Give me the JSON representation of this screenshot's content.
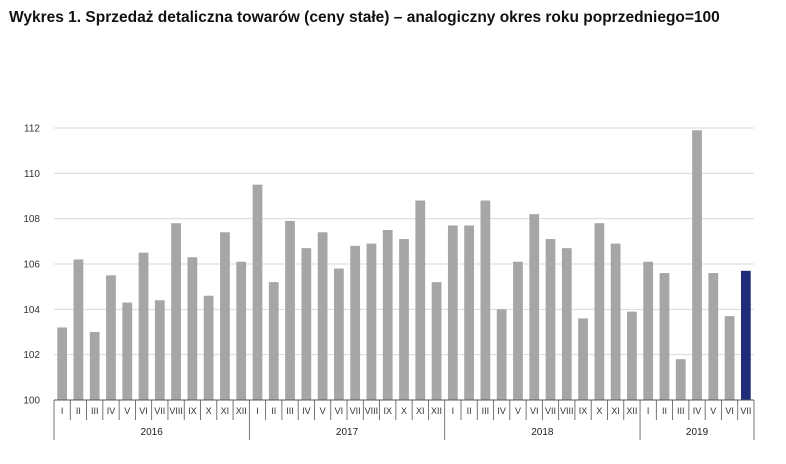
{
  "chart_data": {
    "type": "bar",
    "title": "Wykres 1. Sprzedaż detaliczna towarów (ceny stałe) – analogiczny okres roku poprzedniego=100",
    "xlabel": "",
    "ylabel": "",
    "ylim": [
      100,
      112
    ],
    "yticks": [
      "100",
      "102",
      "104",
      "106",
      "108",
      "110",
      "112"
    ],
    "grid": true,
    "categories": [
      "I",
      "II",
      "III",
      "IV",
      "V",
      "VI",
      "VII",
      "VIII",
      "IX",
      "X",
      "XI",
      "XII",
      "I",
      "II",
      "III",
      "IV",
      "V",
      "VI",
      "VII",
      "VIII",
      "IX",
      "X",
      "XI",
      "XII",
      "I",
      "II",
      "III",
      "IV",
      "V",
      "VI",
      "VII",
      "VIII",
      "IX",
      "X",
      "XI",
      "XII",
      "I",
      "II",
      "III",
      "IV",
      "V",
      "VI",
      "VII"
    ],
    "years": [
      {
        "label": "2016",
        "count": 12
      },
      {
        "label": "2017",
        "count": 12
      },
      {
        "label": "2018",
        "count": 12
      },
      {
        "label": "2019",
        "count": 7
      }
    ],
    "values": [
      103.2,
      106.2,
      103.0,
      105.5,
      104.3,
      106.5,
      104.4,
      107.8,
      106.3,
      104.6,
      107.4,
      106.1,
      109.5,
      105.2,
      107.9,
      106.7,
      107.4,
      105.8,
      106.8,
      106.9,
      107.5,
      107.1,
      108.8,
      105.2,
      107.7,
      107.7,
      108.8,
      104.0,
      106.1,
      108.2,
      107.1,
      106.7,
      103.6,
      107.8,
      106.9,
      103.9,
      106.1,
      105.6,
      101.8,
      111.9,
      105.6,
      103.7,
      105.7
    ],
    "colors": {
      "bar": "#a6a6a6",
      "highlight": "#1f2c7a",
      "grid": "#d9d9d9",
      "axis": "#555555"
    },
    "highlight_index": 42
  }
}
